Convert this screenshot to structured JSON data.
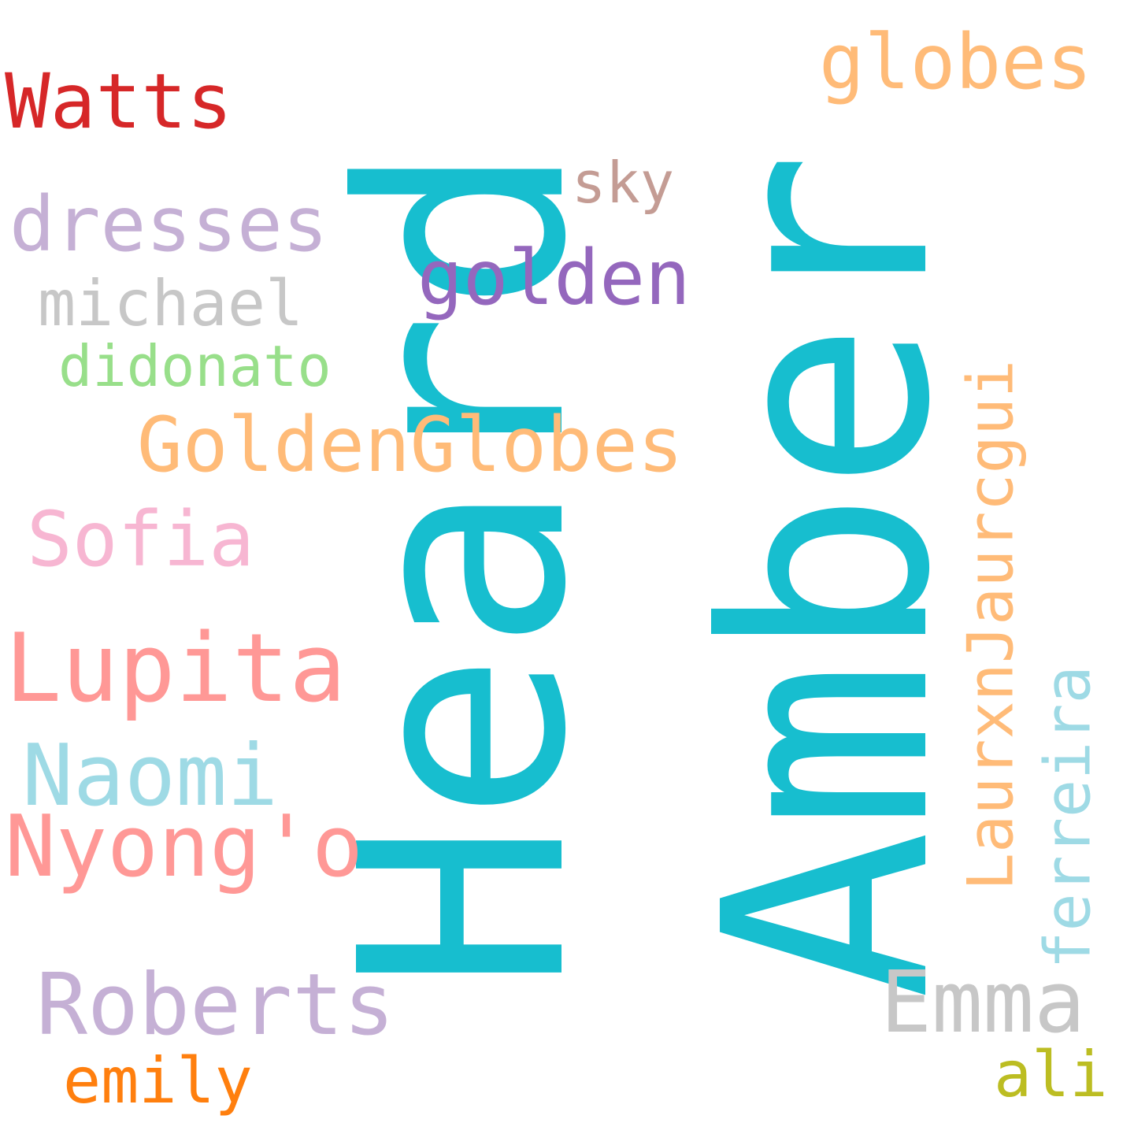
{
  "word_cloud": {
    "words": [
      {
        "text": "Heard",
        "color": "#17becf"
      },
      {
        "text": "Amber",
        "color": "#17becf"
      },
      {
        "text": "globes",
        "color": "#ffbb78"
      },
      {
        "text": "Watts",
        "color": "#d62728"
      },
      {
        "text": "sky",
        "color": "#c49c94"
      },
      {
        "text": "dresses",
        "color": "#c5b0d5"
      },
      {
        "text": "golden",
        "color": "#9467bd"
      },
      {
        "text": "michael",
        "color": "#c7c7c7"
      },
      {
        "text": "didonato",
        "color": "#98df8a"
      },
      {
        "text": "GoldenGlobes",
        "color": "#ffbb78"
      },
      {
        "text": "Sofia",
        "color": "#f7b6d2"
      },
      {
        "text": "LaurxnJaurcgui",
        "color": "#ffbb78"
      },
      {
        "text": "Lupita",
        "color": "#ff9896"
      },
      {
        "text": "ferreira",
        "color": "#9edae5"
      },
      {
        "text": "Naomi",
        "color": "#9edae5"
      },
      {
        "text": "Nyong'o",
        "color": "#ff9896"
      },
      {
        "text": "Roberts",
        "color": "#c5b0d5"
      },
      {
        "text": "Emma",
        "color": "#c7c7c7"
      },
      {
        "text": "emily",
        "color": "#ff7f0e"
      },
      {
        "text": "ali",
        "color": "#bcbd22"
      }
    ]
  }
}
